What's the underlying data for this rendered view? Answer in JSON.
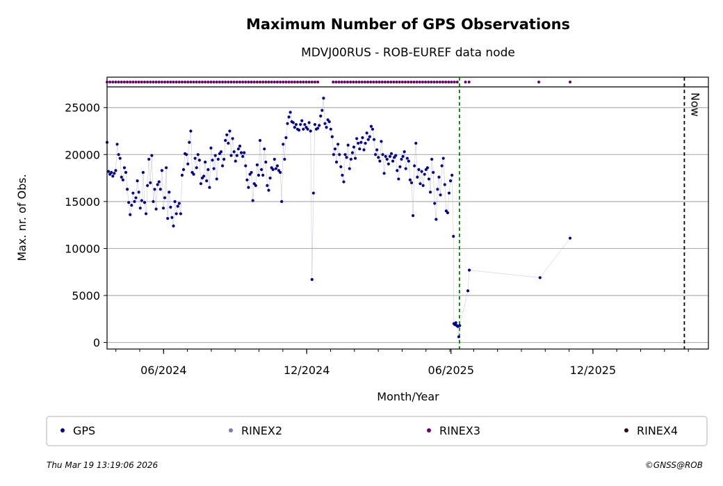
{
  "chart_data": {
    "type": "scatter",
    "title": "Maximum Number of GPS Observations",
    "subtitle": "MDVJ00RUS - ROB-EUREF data node",
    "xlabel": "Month/Year",
    "ylabel": "Max. nr. of Obs.",
    "xlim": [
      0,
      25
    ],
    "ylim": [
      -700,
      27200
    ],
    "x_ticks": [
      {
        "value": 2.35,
        "label": "06/2024"
      },
      {
        "value": 8.3,
        "label": "12/2024"
      },
      {
        "value": 14.3,
        "label": "06/2025"
      },
      {
        "value": 20.2,
        "label": "12/2025"
      }
    ],
    "y_ticks": [
      0,
      5000,
      10000,
      15000,
      20000,
      25000
    ],
    "grid": "horizontal",
    "markers": [
      {
        "name": "upload-gap",
        "x": 14.65,
        "style": "dashed",
        "color": "#008000",
        "label": ""
      },
      {
        "name": "now",
        "x": 24.0,
        "style": "dashed",
        "color": "#000000",
        "label": "Now"
      }
    ],
    "series": [
      {
        "name": "GPS",
        "color": "#00008b",
        "points": [
          [
            0.0,
            21300
          ],
          [
            0.06,
            18200
          ],
          [
            0.12,
            17900
          ],
          [
            0.18,
            18100
          ],
          [
            0.24,
            17700
          ],
          [
            0.3,
            18000
          ],
          [
            0.36,
            18300
          ],
          [
            0.42,
            21100
          ],
          [
            0.48,
            20000
          ],
          [
            0.54,
            19600
          ],
          [
            0.6,
            17600
          ],
          [
            0.66,
            17300
          ],
          [
            0.72,
            18600
          ],
          [
            0.78,
            18100
          ],
          [
            0.84,
            16300
          ],
          [
            0.9,
            14900
          ],
          [
            0.96,
            13600
          ],
          [
            1.02,
            14600
          ],
          [
            1.08,
            15900
          ],
          [
            1.14,
            15000
          ],
          [
            1.2,
            15400
          ],
          [
            1.26,
            17200
          ],
          [
            1.32,
            16000
          ],
          [
            1.38,
            14300
          ],
          [
            1.44,
            15100
          ],
          [
            1.5,
            18100
          ],
          [
            1.56,
            14900
          ],
          [
            1.62,
            13700
          ],
          [
            1.68,
            16700
          ],
          [
            1.74,
            19500
          ],
          [
            1.8,
            17000
          ],
          [
            1.86,
            19900
          ],
          [
            1.92,
            15000
          ],
          [
            1.98,
            16300
          ],
          [
            2.04,
            14200
          ],
          [
            2.1,
            16800
          ],
          [
            2.16,
            17100
          ],
          [
            2.22,
            16300
          ],
          [
            2.28,
            18300
          ],
          [
            2.34,
            14300
          ],
          [
            2.4,
            15400
          ],
          [
            2.46,
            18600
          ],
          [
            2.52,
            13200
          ],
          [
            2.58,
            16000
          ],
          [
            2.64,
            14400
          ],
          [
            2.7,
            13300
          ],
          [
            2.76,
            12400
          ],
          [
            2.82,
            15000
          ],
          [
            2.88,
            13700
          ],
          [
            2.94,
            14500
          ],
          [
            3.0,
            14800
          ],
          [
            3.06,
            13700
          ],
          [
            3.12,
            17800
          ],
          [
            3.18,
            18400
          ],
          [
            3.24,
            20100
          ],
          [
            3.3,
            20000
          ],
          [
            3.36,
            19000
          ],
          [
            3.42,
            21300
          ],
          [
            3.48,
            22500
          ],
          [
            3.54,
            18100
          ],
          [
            3.6,
            17900
          ],
          [
            3.66,
            19600
          ],
          [
            3.72,
            18600
          ],
          [
            3.78,
            20000
          ],
          [
            3.84,
            19400
          ],
          [
            3.9,
            16900
          ],
          [
            3.96,
            17500
          ],
          [
            4.02,
            17700
          ],
          [
            4.08,
            19200
          ],
          [
            4.14,
            17200
          ],
          [
            4.2,
            18400
          ],
          [
            4.26,
            16500
          ],
          [
            4.32,
            20700
          ],
          [
            4.38,
            19400
          ],
          [
            4.44,
            18500
          ],
          [
            4.5,
            19900
          ],
          [
            4.56,
            17400
          ],
          [
            4.62,
            19500
          ],
          [
            4.68,
            20100
          ],
          [
            4.74,
            20300
          ],
          [
            4.8,
            18800
          ],
          [
            4.86,
            19500
          ],
          [
            4.92,
            21500
          ],
          [
            4.98,
            22100
          ],
          [
            5.04,
            21200
          ],
          [
            5.1,
            22500
          ],
          [
            5.16,
            19900
          ],
          [
            5.22,
            21700
          ],
          [
            5.28,
            20300
          ],
          [
            5.34,
            19300
          ],
          [
            5.4,
            19900
          ],
          [
            5.46,
            20600
          ],
          [
            5.52,
            20900
          ],
          [
            5.58,
            20200
          ],
          [
            5.64,
            19800
          ],
          [
            5.7,
            20200
          ],
          [
            5.76,
            18800
          ],
          [
            5.82,
            17300
          ],
          [
            5.88,
            16500
          ],
          [
            5.94,
            17900
          ],
          [
            6.0,
            18100
          ],
          [
            6.06,
            15100
          ],
          [
            6.12,
            16900
          ],
          [
            6.18,
            16700
          ],
          [
            6.24,
            18900
          ],
          [
            6.3,
            17800
          ],
          [
            6.36,
            21500
          ],
          [
            6.42,
            18400
          ],
          [
            6.48,
            17800
          ],
          [
            6.54,
            20600
          ],
          [
            6.6,
            19200
          ],
          [
            6.66,
            16700
          ],
          [
            6.72,
            16200
          ],
          [
            6.78,
            17500
          ],
          [
            6.84,
            18600
          ],
          [
            6.9,
            18400
          ],
          [
            6.96,
            19500
          ],
          [
            7.02,
            18500
          ],
          [
            7.08,
            18800
          ],
          [
            7.14,
            18300
          ],
          [
            7.2,
            18100
          ],
          [
            7.26,
            15000
          ],
          [
            7.32,
            21100
          ],
          [
            7.38,
            19500
          ],
          [
            7.44,
            21800
          ],
          [
            7.5,
            23300
          ],
          [
            7.56,
            24000
          ],
          [
            7.62,
            24500
          ],
          [
            7.68,
            23500
          ],
          [
            7.74,
            23400
          ],
          [
            7.8,
            22900
          ],
          [
            7.86,
            23200
          ],
          [
            7.92,
            22700
          ],
          [
            7.98,
            22600
          ],
          [
            8.04,
            23200
          ],
          [
            8.1,
            23600
          ],
          [
            8.16,
            22700
          ],
          [
            8.22,
            23200
          ],
          [
            8.28,
            22900
          ],
          [
            8.34,
            22700
          ],
          [
            8.4,
            23400
          ],
          [
            8.46,
            22500
          ],
          [
            8.52,
            6700
          ],
          [
            8.58,
            15900
          ],
          [
            8.64,
            23200
          ],
          [
            8.7,
            22700
          ],
          [
            8.76,
            22800
          ],
          [
            8.82,
            23100
          ],
          [
            8.88,
            24100
          ],
          [
            8.94,
            24700
          ],
          [
            9.0,
            26000
          ],
          [
            9.06,
            23300
          ],
          [
            9.12,
            22900
          ],
          [
            9.18,
            23700
          ],
          [
            9.24,
            23500
          ],
          [
            9.3,
            22700
          ],
          [
            9.36,
            21900
          ],
          [
            9.42,
            20000
          ],
          [
            9.48,
            20600
          ],
          [
            9.54,
            19200
          ],
          [
            9.6,
            21100
          ],
          [
            9.66,
            20000
          ],
          [
            9.72,
            18700
          ],
          [
            9.78,
            17800
          ],
          [
            9.84,
            17100
          ],
          [
            9.9,
            20000
          ],
          [
            9.96,
            19700
          ],
          [
            10.02,
            21000
          ],
          [
            10.08,
            18500
          ],
          [
            10.14,
            19500
          ],
          [
            10.2,
            20200
          ],
          [
            10.26,
            20800
          ],
          [
            10.32,
            19600
          ],
          [
            10.38,
            21700
          ],
          [
            10.44,
            21200
          ],
          [
            10.5,
            20600
          ],
          [
            10.56,
            21300
          ],
          [
            10.62,
            21800
          ],
          [
            10.68,
            20500
          ],
          [
            10.74,
            21200
          ],
          [
            10.8,
            22300
          ],
          [
            10.86,
            21600
          ],
          [
            10.92,
            21900
          ],
          [
            10.98,
            23000
          ],
          [
            11.04,
            22700
          ],
          [
            11.1,
            21600
          ],
          [
            11.16,
            20000
          ],
          [
            11.22,
            20500
          ],
          [
            11.28,
            19700
          ],
          [
            11.34,
            19300
          ],
          [
            11.4,
            21400
          ],
          [
            11.46,
            20000
          ],
          [
            11.52,
            18000
          ],
          [
            11.58,
            19800
          ],
          [
            11.64,
            19500
          ],
          [
            11.7,
            19000
          ],
          [
            11.76,
            19800
          ],
          [
            11.82,
            20100
          ],
          [
            11.88,
            19300
          ],
          [
            11.94,
            19700
          ],
          [
            12.0,
            19900
          ],
          [
            12.06,
            18300
          ],
          [
            12.12,
            17400
          ],
          [
            12.18,
            18700
          ],
          [
            12.24,
            19500
          ],
          [
            12.3,
            19800
          ],
          [
            12.36,
            20300
          ],
          [
            12.42,
            18500
          ],
          [
            12.48,
            19600
          ],
          [
            12.54,
            19300
          ],
          [
            12.6,
            17300
          ],
          [
            12.66,
            17000
          ],
          [
            12.72,
            13500
          ],
          [
            12.78,
            18800
          ],
          [
            12.84,
            21200
          ],
          [
            12.9,
            17600
          ],
          [
            12.96,
            18400
          ],
          [
            13.02,
            16900
          ],
          [
            13.08,
            18200
          ],
          [
            13.14,
            16700
          ],
          [
            13.2,
            17900
          ],
          [
            13.26,
            18400
          ],
          [
            13.32,
            18600
          ],
          [
            13.38,
            17400
          ],
          [
            13.44,
            16000
          ],
          [
            13.5,
            19500
          ],
          [
            13.56,
            18100
          ],
          [
            13.62,
            14800
          ],
          [
            13.68,
            13100
          ],
          [
            13.74,
            16300
          ],
          [
            13.8,
            17600
          ],
          [
            13.86,
            15700
          ],
          [
            13.92,
            18800
          ],
          [
            13.98,
            19600
          ],
          [
            14.04,
            16800
          ],
          [
            14.1,
            14000
          ],
          [
            14.16,
            13800
          ],
          [
            14.22,
            15900
          ],
          [
            14.28,
            17200
          ],
          [
            14.34,
            17800
          ],
          [
            14.4,
            11300
          ],
          [
            14.42,
            2000
          ],
          [
            14.46,
            1900
          ],
          [
            14.5,
            2100
          ],
          [
            14.54,
            1800
          ],
          [
            14.58,
            1700
          ],
          [
            14.62,
            600
          ],
          [
            14.66,
            1800
          ],
          [
            15.0,
            5500
          ],
          [
            15.06,
            7700
          ],
          [
            18.0,
            6900
          ],
          [
            19.25,
            11100
          ]
        ]
      },
      {
        "name": "RINEX2",
        "color": "#7b7ab8",
        "points": []
      },
      {
        "name": "RINEX3",
        "color": "#6a006a",
        "strip_ranges": [
          [
            0.0,
            8.8
          ],
          [
            9.4,
            14.6
          ]
        ],
        "strip_points": [
          14.9,
          15.05,
          17.95,
          19.25
        ]
      },
      {
        "name": "RINEX4",
        "color": "#2a0a1a",
        "points": []
      }
    ]
  },
  "legend": {
    "items": [
      {
        "label": "GPS",
        "color": "#00008b"
      },
      {
        "label": "RINEX2",
        "color": "#7b7ab8"
      },
      {
        "label": "RINEX3",
        "color": "#6a006a"
      },
      {
        "label": "RINEX4",
        "color": "#2a0a1a"
      }
    ]
  },
  "footer": {
    "timestamp": "Thu Mar 19 13:19:06 2026",
    "copyright": "©GNSS@ROB"
  }
}
